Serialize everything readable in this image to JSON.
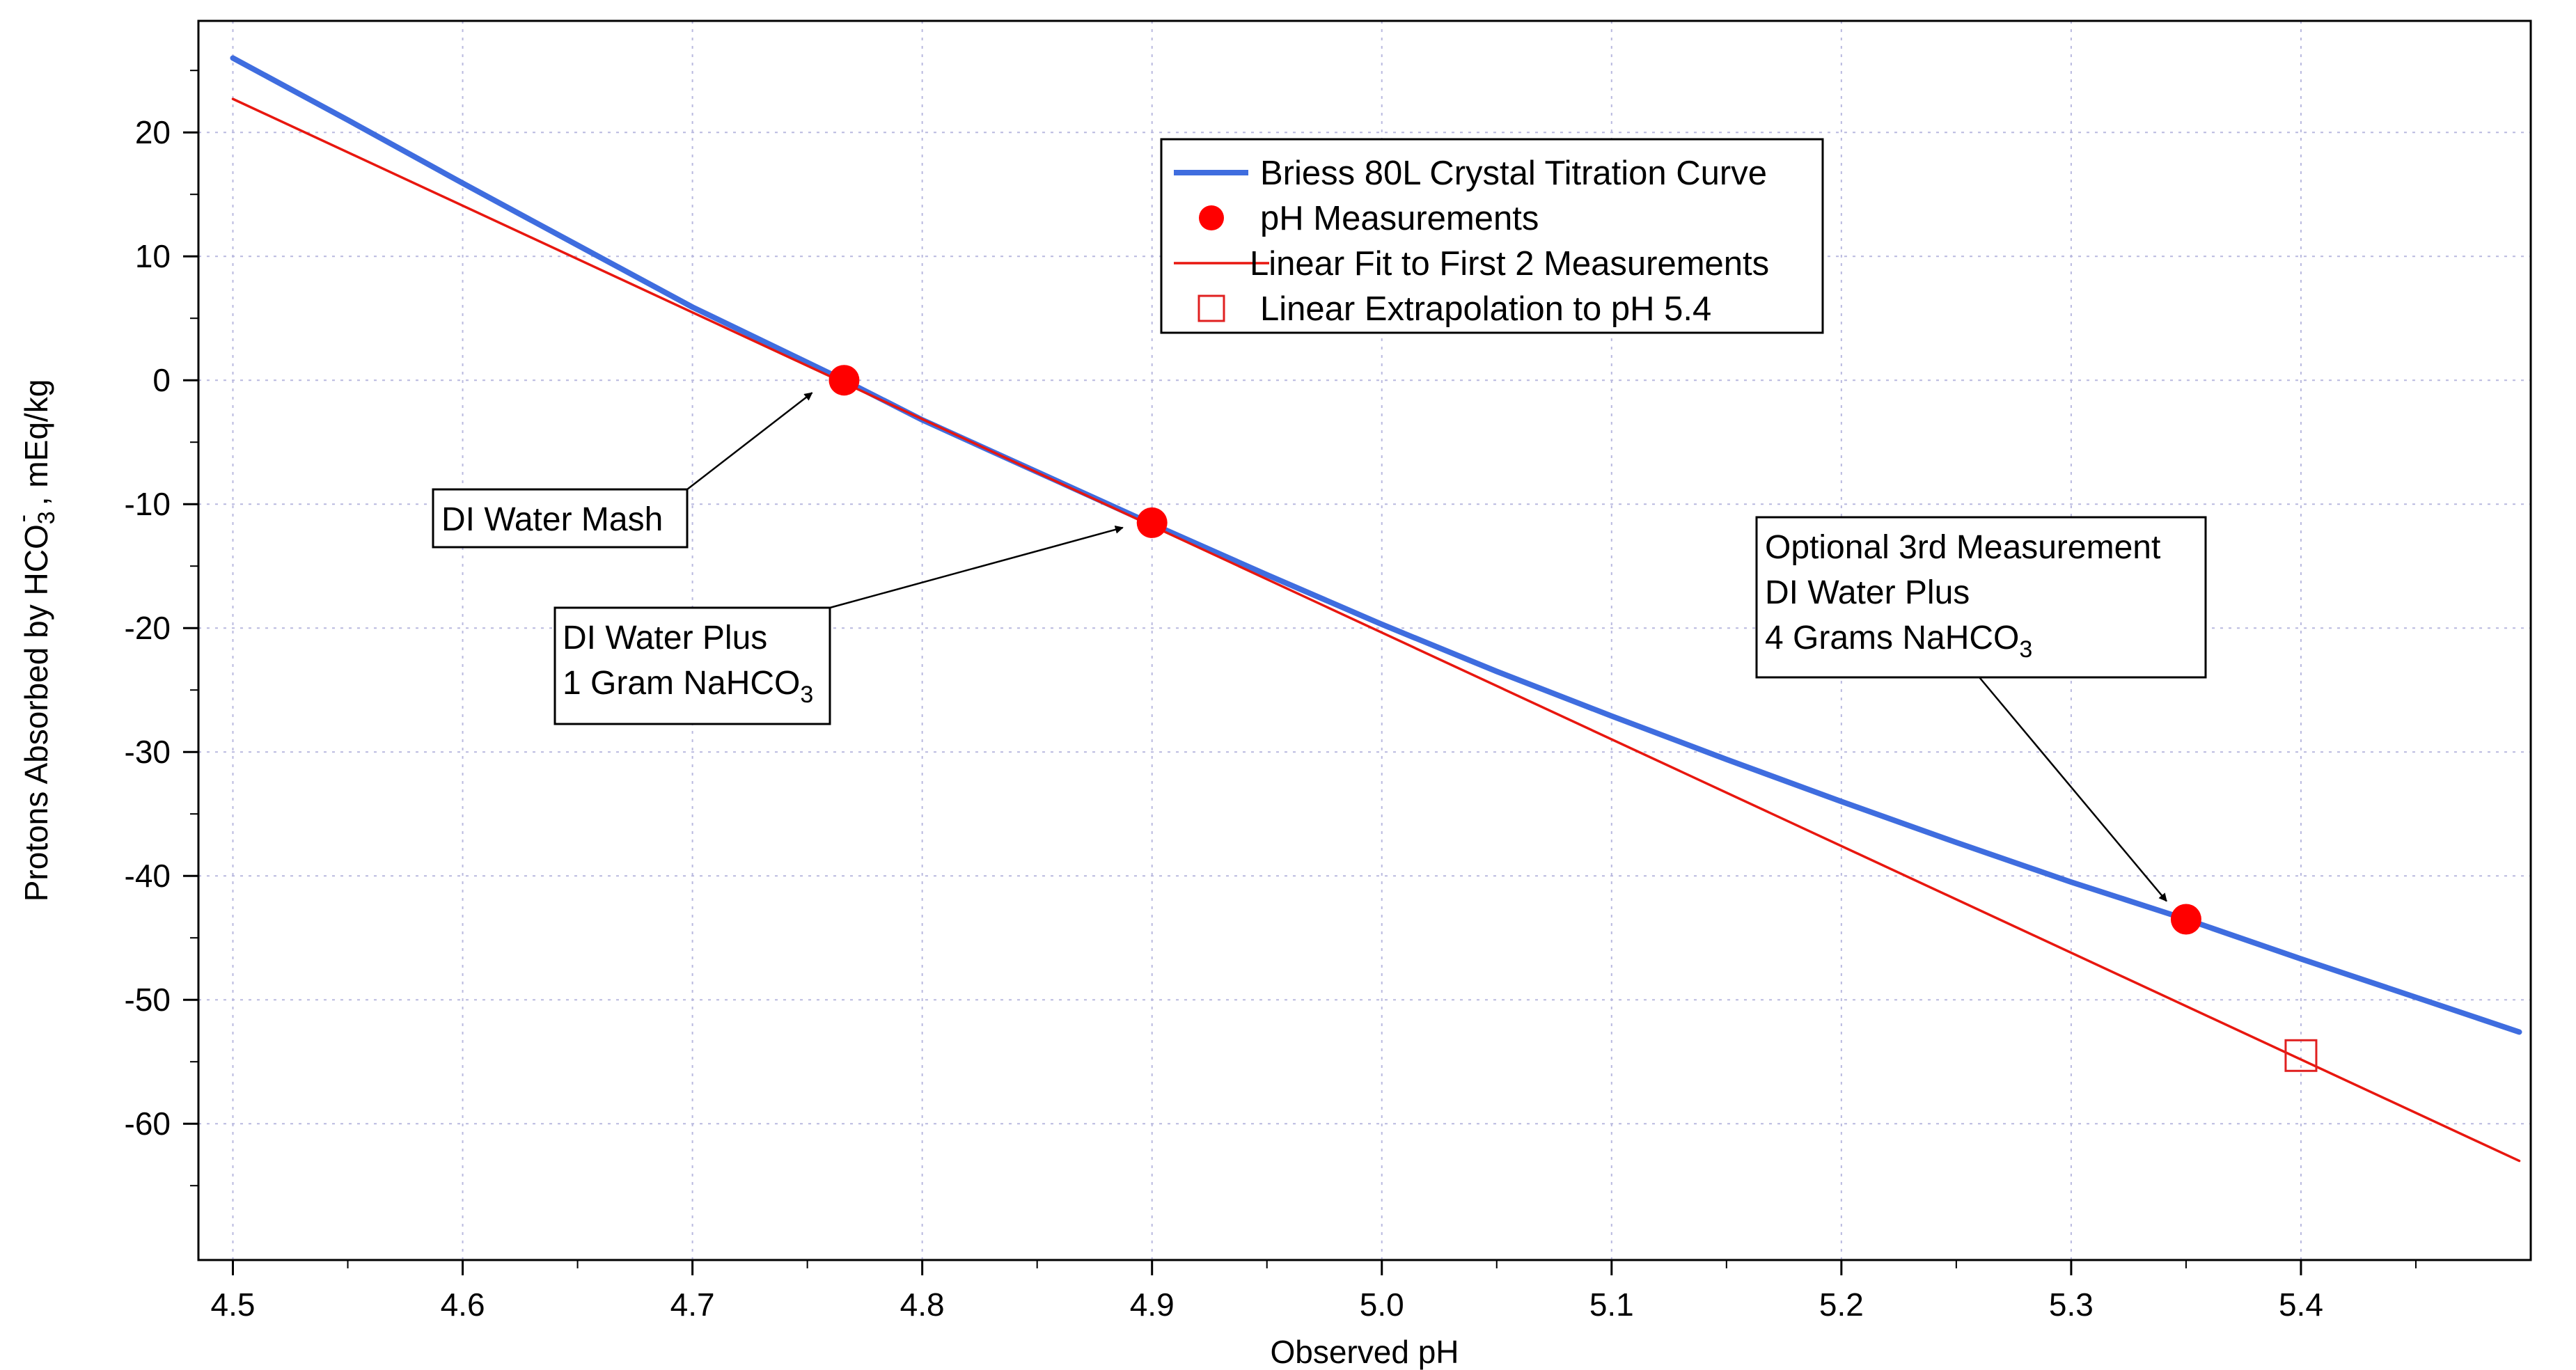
{
  "chart_data": {
    "type": "line",
    "title": "",
    "xlabel": "Observed pH",
    "ylabel": {
      "main": "Protons Absorbed by HCO",
      "sub": "3",
      "sup": "-",
      "rest": " , mEq/kg"
    },
    "xlim": [
      4.485,
      5.5
    ],
    "ylim": [
      -71,
      29
    ],
    "xticks": [
      "4.5",
      "4.6",
      "4.7",
      "4.8",
      "4.9",
      "5.0",
      "5.1",
      "5.2",
      "5.3",
      "5.4"
    ],
    "yticks": [
      "20",
      "10",
      "0",
      "-10",
      "-20",
      "-30",
      "-40",
      "-50",
      "-60"
    ],
    "grid": true,
    "legend_position": "top-center",
    "series": [
      {
        "name": "Briess 80L Crystal Titration Curve",
        "kind": "line",
        "color": "#3f6ddf",
        "x": [
          4.5,
          4.55,
          4.6,
          4.65,
          4.7,
          4.766,
          4.8,
          4.85,
          4.9,
          4.95,
          5.0,
          5.05,
          5.1,
          5.15,
          5.2,
          5.25,
          5.3,
          5.35,
          5.4,
          5.45,
          5.495
        ],
        "y": [
          26.0,
          21.0,
          15.9,
          10.9,
          5.9,
          0.0,
          -3.2,
          -7.4,
          -11.6,
          -15.7,
          -19.7,
          -23.5,
          -27.1,
          -30.6,
          -34.0,
          -37.3,
          -40.5,
          -43.5,
          -46.7,
          -49.8,
          -52.6
        ]
      },
      {
        "name": "pH Measurements",
        "kind": "points",
        "color": "#ff0000",
        "x": [
          4.766,
          4.9,
          5.35
        ],
        "y": [
          0.0,
          -11.5,
          -43.5
        ]
      },
      {
        "name": "Linear Fit to First 2 Measurements",
        "kind": "line",
        "color": "#e8170f",
        "x": [
          4.5,
          5.495
        ],
        "y": [
          22.7,
          -63.0
        ]
      },
      {
        "name": "Linear Extrapolation to pH 5.4",
        "kind": "open-square",
        "color": "#e02020",
        "x": [
          5.4
        ],
        "y": [
          -54.5
        ]
      }
    ],
    "annotations": [
      {
        "lines": [
          {
            "text": "DI Water Mash"
          }
        ]
      },
      {
        "lines": [
          {
            "text": "DI Water Plus"
          },
          {
            "text": "1 Gram NaHCO",
            "sub": "3"
          }
        ]
      },
      {
        "lines": [
          {
            "text": "Optional 3rd Measurement"
          },
          {
            "text": "DI Water Plus"
          },
          {
            "text": "4 Grams  NaHCO",
            "sub": "3"
          }
        ]
      }
    ]
  }
}
